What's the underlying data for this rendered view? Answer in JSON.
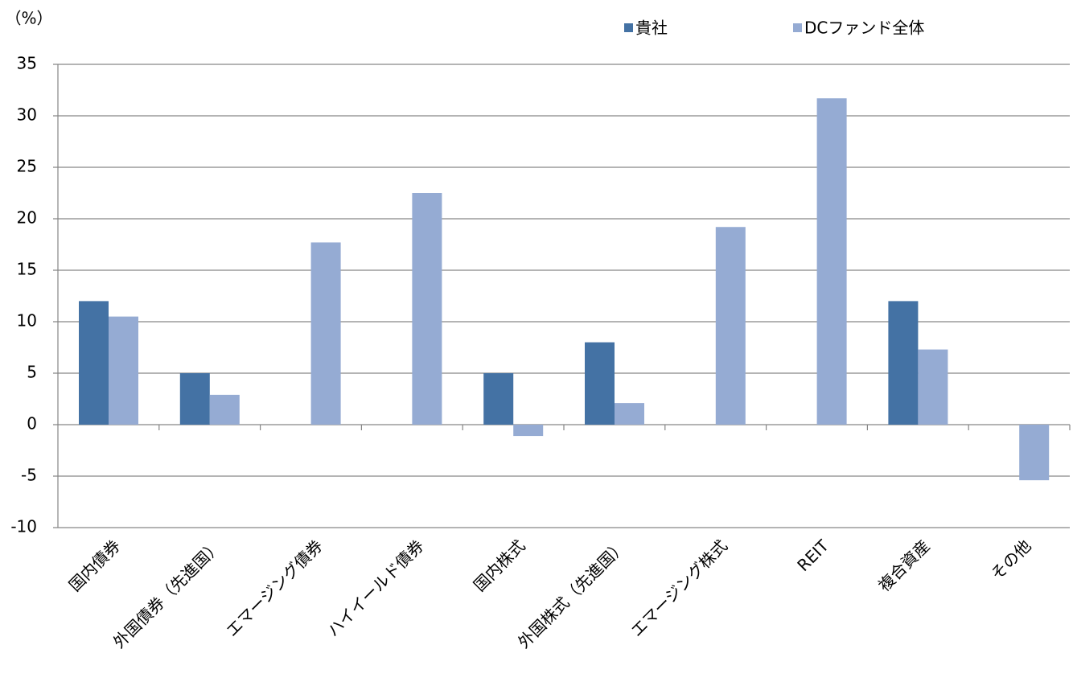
{
  "chart_data": {
    "type": "bar",
    "y_label": "（%）",
    "categories": [
      "国内債券",
      "外国債券（先進国）",
      "エマージング債券",
      "ハイイールド債券",
      "国内株式",
      "外国株式（先進国）",
      "エマージング株式",
      "REIT",
      "複合資産",
      "その他"
    ],
    "series": [
      {
        "name": "貴社",
        "color": "#4472a4",
        "values": [
          12,
          5,
          null,
          null,
          5,
          8,
          null,
          null,
          12,
          null
        ]
      },
      {
        "name": "DCファンド全体",
        "color": "#95abd3",
        "values": [
          10.5,
          2.9,
          17.7,
          22.5,
          -1.1,
          2.1,
          19.2,
          31.7,
          7.3,
          -5.4
        ]
      }
    ],
    "ylim": [
      -10,
      35
    ],
    "yticks": [
      -10,
      -5,
      0,
      5,
      10,
      15,
      20,
      25,
      30,
      35
    ],
    "grid": true
  }
}
